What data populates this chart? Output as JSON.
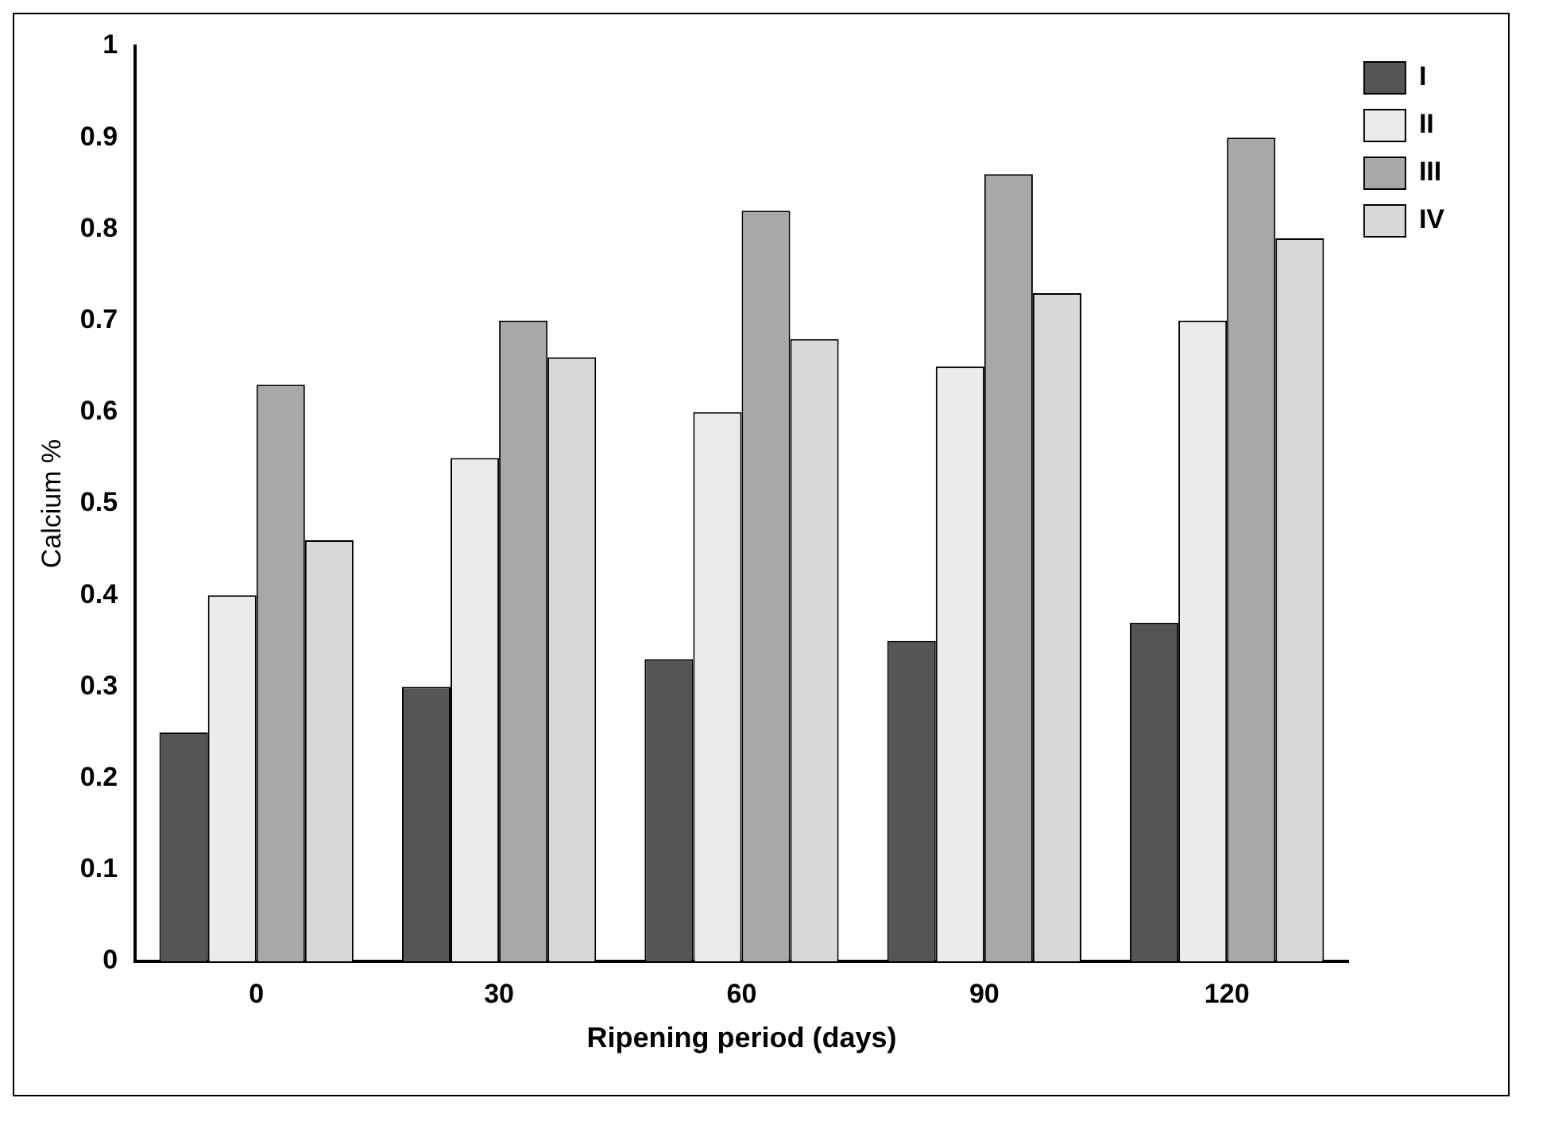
{
  "chart_data": {
    "type": "bar",
    "xlabel": "Ripening period (days)",
    "ylabel": "Calcium %",
    "categories": [
      "0",
      "30",
      "60",
      "90",
      "120"
    ],
    "series": [
      {
        "name": "I",
        "color": "#555555",
        "values": [
          0.25,
          0.3,
          0.33,
          0.35,
          0.37
        ]
      },
      {
        "name": "II",
        "color": "#ebebeb",
        "values": [
          0.4,
          0.55,
          0.6,
          0.65,
          0.7
        ]
      },
      {
        "name": "III",
        "color": "#a8a8a8",
        "values": [
          0.63,
          0.7,
          0.82,
          0.86,
          0.9
        ]
      },
      {
        "name": "IV",
        "color": "#d8d8d8",
        "values": [
          0.46,
          0.66,
          0.68,
          0.73,
          0.79
        ]
      }
    ],
    "ylim": [
      0,
      1
    ],
    "yticks": [
      0,
      0.1,
      0.2,
      0.3,
      0.4,
      0.5,
      0.6,
      0.7,
      0.8,
      0.9,
      1
    ],
    "grid": false,
    "legend": "top right"
  }
}
